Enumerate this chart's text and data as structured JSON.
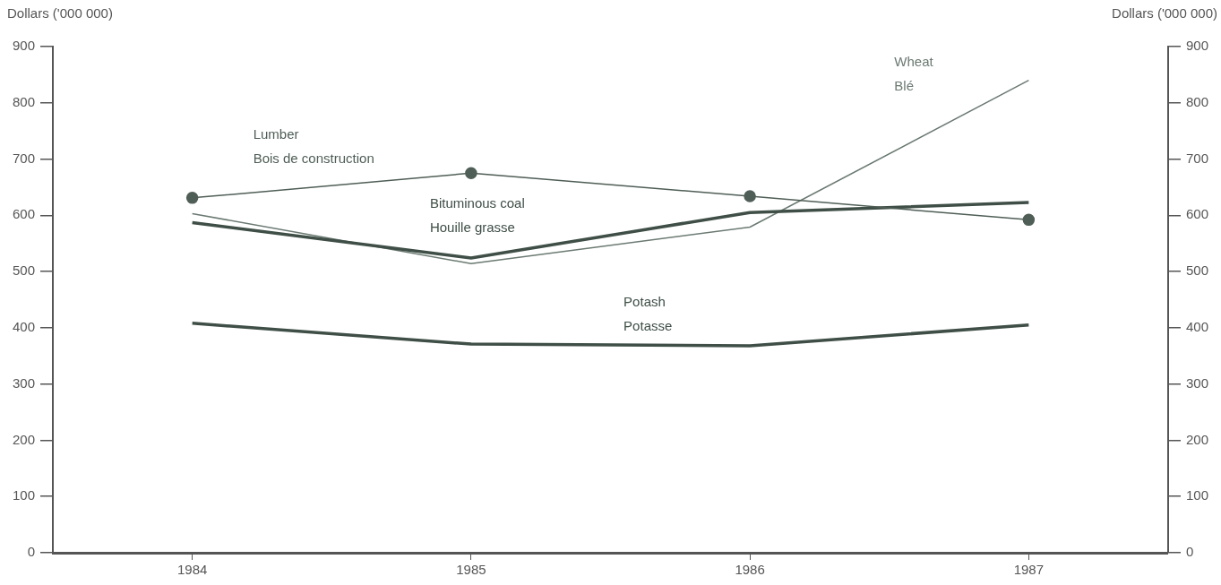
{
  "chart_data": {
    "type": "line",
    "ylabel": "Dollars ('000 000)",
    "y2label": "Dollars ('000 000)",
    "categories": [
      "1984",
      "1985",
      "1986",
      "1987"
    ],
    "ylim": [
      0,
      900
    ],
    "yticks": [
      0,
      100,
      200,
      300,
      400,
      500,
      600,
      700,
      800,
      900
    ],
    "y2lim": [
      0,
      900
    ],
    "y2ticks": [
      0,
      100,
      200,
      300,
      400,
      500,
      600,
      700,
      800,
      900
    ],
    "grid": false,
    "legend": false,
    "line_style": "solid",
    "series": [
      {
        "name": "Lumber\nBois de construction",
        "color": "#4f5e56",
        "marker": "circle",
        "values": [
          631,
          675,
          634,
          592
        ]
      },
      {
        "name": "Bituminous coal\nHouille grasse",
        "color": "#3f4f47",
        "marker": "none",
        "values": [
          587,
          524,
          605,
          623
        ]
      },
      {
        "name": "Wheat\nBlé",
        "color": "#6b7a72",
        "marker": "none",
        "values": [
          603,
          514,
          579,
          840
        ]
      },
      {
        "name": "Potash\nPotasse",
        "color": "#3f4f47",
        "marker": "none",
        "values": [
          408,
          371,
          368,
          405
        ]
      }
    ]
  }
}
